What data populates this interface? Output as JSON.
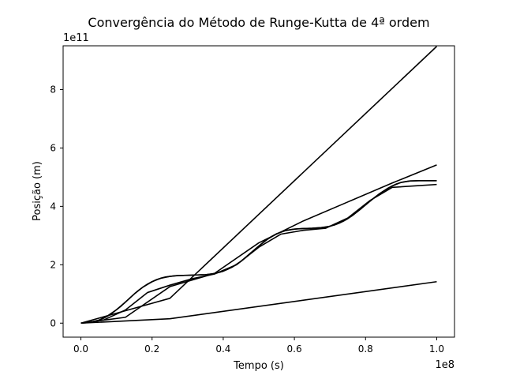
{
  "chart_data": {
    "type": "line",
    "title": "Convergência do Método de Runge-Kutta de 4ª ordem",
    "xlabel": "Tempo (s)",
    "ylabel": "Posição (m)",
    "x_offset_label": "1e8",
    "y_offset_label": "1e11",
    "x_multiplier": 100000000,
    "y_multiplier": 100000000000,
    "xlim": [
      -0.05,
      1.05
    ],
    "ylim": [
      -0.48,
      9.5
    ],
    "x_ticks": [
      0.0,
      0.2,
      0.4,
      0.6,
      0.8,
      1.0
    ],
    "x_tick_labels": [
      "0.0",
      "0.2",
      "0.4",
      "0.6",
      "0.8",
      "1.0"
    ],
    "y_ticks": [
      0,
      2,
      4,
      6,
      8
    ],
    "y_tick_labels": [
      "0",
      "2",
      "4",
      "6",
      "8"
    ],
    "grid": false,
    "legend": "none",
    "line_color": "#000000",
    "series": [
      {
        "x": [
          0.0,
          0.25,
          1.0
        ],
        "y": [
          0.0,
          0.15,
          1.42
        ]
      },
      {
        "x": [
          0.0,
          0.25,
          1.0
        ],
        "y": [
          0.0,
          0.85,
          9.48
        ]
      },
      {
        "x": [
          0.0,
          0.125,
          0.25,
          0.375,
          0.5,
          0.625,
          0.75,
          0.875,
          1.0
        ],
        "y": [
          0.0,
          0.2,
          1.25,
          1.7,
          2.75,
          3.5,
          4.15,
          4.8,
          5.42
        ]
      },
      {
        "x": [
          0.0,
          0.0625,
          0.125,
          0.1875,
          0.25,
          0.3125,
          0.375,
          0.4375,
          0.5,
          0.5625,
          0.625,
          0.6875,
          0.75,
          0.8125,
          0.875,
          0.9375,
          1.0
        ],
        "y": [
          0.0,
          0.1,
          0.45,
          1.05,
          1.3,
          1.52,
          1.68,
          2.0,
          2.6,
          3.05,
          3.18,
          3.25,
          3.6,
          4.2,
          4.65,
          4.7,
          4.75
        ]
      },
      {
        "x": [
          0.0,
          0.025,
          0.05,
          0.075,
          0.1,
          0.125,
          0.15,
          0.175,
          0.2,
          0.225,
          0.25,
          0.275,
          0.3,
          0.325,
          0.35,
          0.375,
          0.4,
          0.425,
          0.45,
          0.475,
          0.5,
          0.525,
          0.55,
          0.575,
          0.6,
          0.625,
          0.65,
          0.675,
          0.7,
          0.725,
          0.75,
          0.775,
          0.8,
          0.825,
          0.85,
          0.875,
          0.9,
          0.925,
          0.95,
          0.975,
          1.0
        ],
        "y": [
          0.0,
          0.03,
          0.1,
          0.25,
          0.46,
          0.72,
          1.0,
          1.24,
          1.42,
          1.54,
          1.6,
          1.63,
          1.64,
          1.65,
          1.66,
          1.7,
          1.78,
          1.92,
          2.12,
          2.38,
          2.64,
          2.88,
          3.06,
          3.17,
          3.22,
          3.24,
          3.25,
          3.27,
          3.32,
          3.42,
          3.58,
          3.8,
          4.05,
          4.3,
          4.52,
          4.7,
          4.82,
          4.87,
          4.88,
          4.88,
          4.88
        ]
      },
      {
        "x": [
          0.0,
          0.0125,
          0.025,
          0.0375,
          0.05,
          0.0625,
          0.075,
          0.0875,
          0.1,
          0.1125,
          0.125,
          0.1375,
          0.15,
          0.1625,
          0.175,
          0.1875,
          0.2,
          0.2125,
          0.225,
          0.2375,
          0.25,
          0.2625,
          0.275,
          0.2875,
          0.3,
          0.3125,
          0.325,
          0.3375,
          0.35,
          0.3625,
          0.375,
          0.3875,
          0.4,
          0.4125,
          0.425,
          0.4375,
          0.45,
          0.4625,
          0.475,
          0.4875,
          0.5,
          0.5125,
          0.525,
          0.5375,
          0.55,
          0.5625,
          0.575,
          0.5875,
          0.6,
          0.6125,
          0.625,
          0.6375,
          0.65,
          0.6625,
          0.675,
          0.6875,
          0.7,
          0.7125,
          0.725,
          0.7375,
          0.75,
          0.7625,
          0.775,
          0.7875,
          0.8,
          0.8125,
          0.825,
          0.8375,
          0.85,
          0.8625,
          0.875,
          0.8875,
          0.9,
          0.9125,
          0.925,
          0.9375,
          0.95,
          0.9625,
          0.975,
          0.9875,
          1.0
        ],
        "y": [
          0.0,
          0.01,
          0.03,
          0.06,
          0.1,
          0.16,
          0.24,
          0.34,
          0.46,
          0.58,
          0.72,
          0.86,
          1.0,
          1.13,
          1.24,
          1.34,
          1.42,
          1.49,
          1.54,
          1.58,
          1.6,
          1.62,
          1.63,
          1.635,
          1.64,
          1.645,
          1.65,
          1.655,
          1.66,
          1.675,
          1.7,
          1.735,
          1.78,
          1.845,
          1.92,
          2.01,
          2.12,
          2.24,
          2.38,
          2.51,
          2.64,
          2.77,
          2.88,
          2.98,
          3.06,
          3.12,
          3.17,
          3.2,
          3.22,
          3.235,
          3.24,
          3.245,
          3.25,
          3.26,
          3.27,
          3.29,
          3.32,
          3.36,
          3.42,
          3.49,
          3.58,
          3.68,
          3.8,
          3.92,
          4.05,
          4.18,
          4.3,
          4.42,
          4.52,
          4.62,
          4.7,
          4.77,
          4.82,
          4.85,
          4.87,
          4.875,
          4.88,
          4.88,
          4.88,
          4.88,
          4.88
        ]
      }
    ]
  }
}
